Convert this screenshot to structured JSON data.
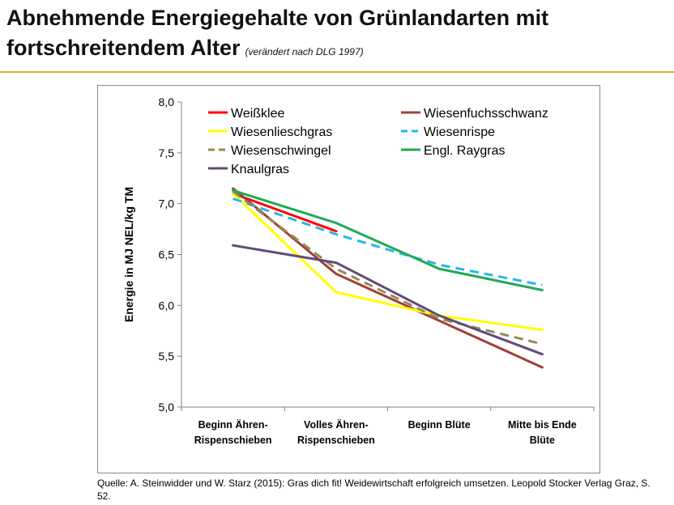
{
  "slide": {
    "title_line1": "Abnehmende Energiegehalte von Grünlandarten mit",
    "title_line2": "fortschreitendem Alter",
    "title_source": "(verändert nach DLG 1997)",
    "caption": "Quelle: A. Steinwidder und W. Starz (2015): Gras dich fit! Weidewirtschaft erfolgreich umsetzen. Leopold Stocker Verlag Graz, S. 52.",
    "accent_color": "#e8a33a"
  },
  "chart_data": {
    "type": "line",
    "ylabel": "Energie in MJ NEL/kg TM",
    "categories": [
      [
        "Beginn Ähren-",
        "Rispenschieben"
      ],
      [
        "Volles Ähren-",
        "Rispenschieben"
      ],
      [
        "Beginn Blüte"
      ],
      [
        "Mitte bis Ende",
        "Blüte"
      ]
    ],
    "y_ticks": [
      "8,0",
      "7,5",
      "7,0",
      "6,5",
      "6,0",
      "5,5",
      "5,0"
    ],
    "ylim": [
      5.0,
      8.0
    ],
    "grid": false,
    "legend_position": "top",
    "series": [
      {
        "name": "Weißklee",
        "color": "#ff0000",
        "dash": "solid",
        "values": [
          7.1,
          6.73,
          null,
          null
        ]
      },
      {
        "name": "Wiesenfuchsschwanz",
        "color": "#a0403a",
        "dash": "solid",
        "values": [
          7.15,
          6.31,
          5.85,
          5.39
        ]
      },
      {
        "name": "Wiesenlieschgras",
        "color": "#ffff00",
        "dash": "solid",
        "values": [
          7.1,
          6.13,
          5.9,
          5.76
        ]
      },
      {
        "name": "Wiesenrispe",
        "color": "#29b6e8",
        "dash": "dashed",
        "values": [
          7.05,
          6.7,
          6.4,
          6.2
        ]
      },
      {
        "name": "Wiesenschwingel",
        "color": "#948a54",
        "dash": "dashed",
        "values": [
          7.12,
          6.36,
          5.87,
          5.62
        ]
      },
      {
        "name": "Engl. Raygras",
        "color": "#1faa55",
        "dash": "solid",
        "values": [
          7.13,
          6.81,
          6.36,
          6.15
        ]
      },
      {
        "name": "Knaulgras",
        "color": "#604a7b",
        "dash": "solid",
        "values": [
          6.59,
          6.42,
          5.9,
          5.52
        ]
      }
    ]
  }
}
